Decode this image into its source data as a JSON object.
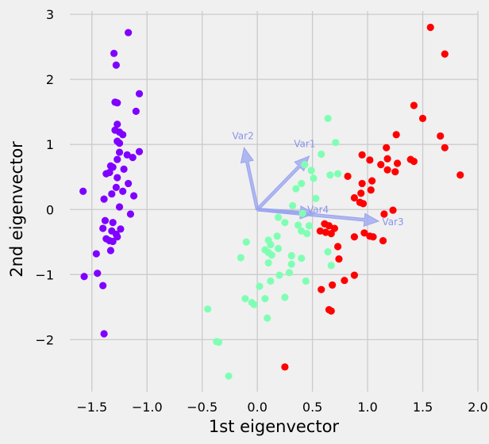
{
  "chart_data": {
    "type": "scatter",
    "title": "",
    "xlabel": "1st eigenvector",
    "ylabel": "2nd eigenvector",
    "xlim": [
      -1.7,
      2.0
    ],
    "ylim": [
      -2.8,
      3.05
    ],
    "xticks": [
      -1.5,
      -1.0,
      -0.5,
      0.0,
      0.5,
      1.0,
      1.5,
      2.0
    ],
    "yticks": [
      -2,
      -1,
      0,
      1,
      2,
      3
    ],
    "xtick_labels": [
      "−1.5",
      "−1.0",
      "−0.5",
      "0.0",
      "0.5",
      "1.0",
      "1.5",
      "2.0"
    ],
    "ytick_labels": [
      "−2",
      "−1",
      "0",
      "1",
      "2",
      "3"
    ],
    "grid": true,
    "colors": {
      "background": "#f0f0f0",
      "grid": "#cbcbcb",
      "arrow": "#9aa4f0",
      "arrow_label": "#8a94e8"
    },
    "series": [
      {
        "color": "#8000ff",
        "points": [
          [
            -1.17,
            2.72
          ],
          [
            -1.3,
            2.4
          ],
          [
            -1.28,
            2.22
          ],
          [
            -1.07,
            1.78
          ],
          [
            -1.29,
            1.65
          ],
          [
            -1.27,
            1.64
          ],
          [
            -1.1,
            1.51
          ],
          [
            -1.27,
            1.31
          ],
          [
            -1.29,
            1.22
          ],
          [
            -1.25,
            1.19
          ],
          [
            -1.22,
            1.15
          ],
          [
            -1.27,
            1.05
          ],
          [
            -1.25,
            1.02
          ],
          [
            -1.07,
            0.89
          ],
          [
            -1.25,
            0.88
          ],
          [
            -1.18,
            0.84
          ],
          [
            -1.13,
            0.8
          ],
          [
            -1.27,
            0.77
          ],
          [
            -1.33,
            0.67
          ],
          [
            -1.31,
            0.65
          ],
          [
            -1.21,
            0.62
          ],
          [
            -1.34,
            0.57
          ],
          [
            -1.37,
            0.55
          ],
          [
            -1.27,
            0.49
          ],
          [
            -1.17,
            0.4
          ],
          [
            -1.28,
            0.34
          ],
          [
            -1.22,
            0.28
          ],
          [
            -1.32,
            0.24
          ],
          [
            -1.12,
            0.21
          ],
          [
            -1.39,
            0.16
          ],
          [
            -1.25,
            0.04
          ],
          [
            -1.15,
            -0.07
          ],
          [
            -1.38,
            -0.17
          ],
          [
            -1.31,
            -0.2
          ],
          [
            -1.4,
            -0.29
          ],
          [
            -1.24,
            -0.3
          ],
          [
            -1.32,
            -0.33
          ],
          [
            -1.28,
            -0.38
          ],
          [
            -1.27,
            -0.42
          ],
          [
            -1.37,
            -0.45
          ],
          [
            -1.34,
            -0.48
          ],
          [
            -1.31,
            -0.49
          ],
          [
            -1.33,
            -0.63
          ],
          [
            -1.46,
            -0.68
          ],
          [
            -1.45,
            -0.98
          ],
          [
            -1.57,
            -1.03
          ],
          [
            -1.4,
            -1.17
          ],
          [
            -1.39,
            -1.91
          ],
          [
            -1.58,
            0.28
          ]
        ]
      },
      {
        "color": "#80ffb4",
        "points": [
          [
            0.64,
            1.4
          ],
          [
            0.71,
            1.03
          ],
          [
            0.58,
            0.85
          ],
          [
            0.43,
            0.69
          ],
          [
            0.49,
            0.6
          ],
          [
            0.73,
            0.55
          ],
          [
            0.66,
            0.53
          ],
          [
            0.51,
            0.48
          ],
          [
            0.4,
            0.4
          ],
          [
            0.35,
            0.32
          ],
          [
            0.53,
            0.17
          ],
          [
            0.32,
            0.06
          ],
          [
            0.41,
            -0.06
          ],
          [
            0.19,
            -0.12
          ],
          [
            0.25,
            -0.2
          ],
          [
            0.37,
            -0.24
          ],
          [
            0.47,
            -0.25
          ],
          [
            0.4,
            -0.33
          ],
          [
            0.45,
            -0.37
          ],
          [
            0.18,
            -0.41
          ],
          [
            0.1,
            -0.47
          ],
          [
            -0.1,
            -0.5
          ],
          [
            0.12,
            -0.54
          ],
          [
            0.19,
            -0.6
          ],
          [
            0.07,
            -0.62
          ],
          [
            0.1,
            -0.66
          ],
          [
            0.13,
            -0.7
          ],
          [
            0.31,
            -0.71
          ],
          [
            0.64,
            -0.65
          ],
          [
            -0.15,
            -0.74
          ],
          [
            0.4,
            -0.75
          ],
          [
            0.1,
            -0.82
          ],
          [
            0.31,
            -0.84
          ],
          [
            0.67,
            -0.86
          ],
          [
            0.29,
            -0.97
          ],
          [
            0.2,
            -1.01
          ],
          [
            0.12,
            -1.1
          ],
          [
            0.44,
            -1.1
          ],
          [
            0.02,
            -1.18
          ],
          [
            -0.11,
            -1.37
          ],
          [
            0.25,
            -1.35
          ],
          [
            0.07,
            -1.37
          ],
          [
            -0.05,
            -1.43
          ],
          [
            -0.03,
            -1.46
          ],
          [
            0.09,
            -1.67
          ],
          [
            -0.45,
            -1.53
          ],
          [
            -0.37,
            -2.03
          ],
          [
            -0.35,
            -2.04
          ],
          [
            -0.26,
            -2.56
          ]
        ]
      },
      {
        "color": "#ff0000",
        "points": [
          [
            1.57,
            2.8
          ],
          [
            1.7,
            2.39
          ],
          [
            1.42,
            1.6
          ],
          [
            1.5,
            1.4
          ],
          [
            1.26,
            1.15
          ],
          [
            1.66,
            1.13
          ],
          [
            1.17,
            0.95
          ],
          [
            1.7,
            0.95
          ],
          [
            0.95,
            0.84
          ],
          [
            1.18,
            0.78
          ],
          [
            1.39,
            0.77
          ],
          [
            1.42,
            0.74
          ],
          [
            1.02,
            0.76
          ],
          [
            1.27,
            0.71
          ],
          [
            1.12,
            0.69
          ],
          [
            1.18,
            0.61
          ],
          [
            1.25,
            0.58
          ],
          [
            1.84,
            0.53
          ],
          [
            0.82,
            0.51
          ],
          [
            1.04,
            0.44
          ],
          [
            0.95,
            0.4
          ],
          [
            1.03,
            0.3
          ],
          [
            0.94,
            0.25
          ],
          [
            0.88,
            0.18
          ],
          [
            0.93,
            0.11
          ],
          [
            0.96,
            0.09
          ],
          [
            1.23,
            -0.01
          ],
          [
            1.15,
            -0.07
          ],
          [
            0.61,
            -0.22
          ],
          [
            0.65,
            -0.25
          ],
          [
            0.7,
            -0.29
          ],
          [
            0.57,
            -0.33
          ],
          [
            0.62,
            -0.35
          ],
          [
            0.67,
            -0.37
          ],
          [
            1.02,
            -0.41
          ],
          [
            1.05,
            -0.42
          ],
          [
            0.88,
            -0.42
          ],
          [
            0.97,
            -0.36
          ],
          [
            1.14,
            -0.48
          ],
          [
            0.74,
            -0.76
          ],
          [
            0.88,
            -1.01
          ],
          [
            0.79,
            -1.09
          ],
          [
            0.68,
            -1.16
          ],
          [
            0.58,
            -1.23
          ],
          [
            0.65,
            -1.54
          ],
          [
            0.67,
            -1.56
          ],
          [
            0.25,
            -2.42
          ],
          [
            0.73,
            -0.57
          ]
        ]
      }
    ],
    "arrows": [
      {
        "label": "Var1",
        "tip": [
          0.47,
          0.82
        ],
        "label_pos": [
          0.43,
          0.96
        ]
      },
      {
        "label": "Var2",
        "tip": [
          -0.12,
          0.95
        ],
        "label_pos": [
          -0.13,
          1.08
        ]
      },
      {
        "label": "Var3",
        "tip": [
          1.1,
          -0.18
        ],
        "label_pos": [
          1.23,
          -0.24
        ]
      },
      {
        "label": "Var4",
        "tip": [
          0.52,
          -0.06
        ],
        "label_pos": [
          0.55,
          -0.05
        ]
      }
    ]
  }
}
